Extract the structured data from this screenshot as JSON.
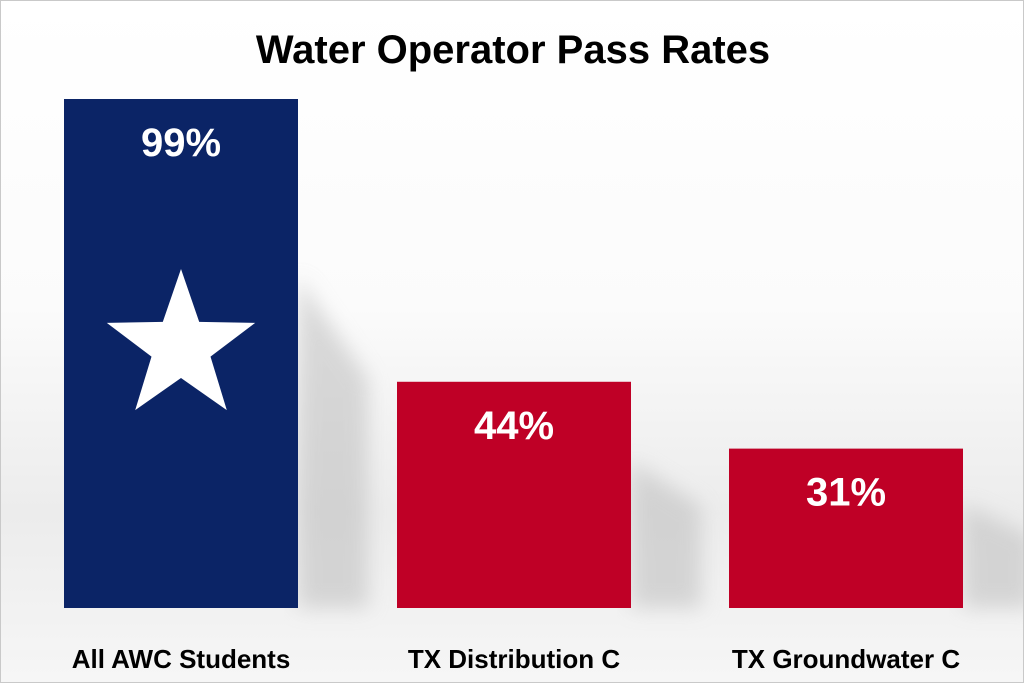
{
  "chart_data": {
    "type": "bar",
    "title": "Water Operator Pass Rates",
    "categories": [
      "All AWC Students",
      "TX Distribution C",
      "TX Groundwater C"
    ],
    "values": [
      99,
      44,
      31
    ],
    "value_labels": [
      "99%",
      "44%",
      "31%"
    ],
    "xlabel": "",
    "ylabel": "",
    "ylim": [
      0,
      110
    ],
    "grid": false,
    "legend": "none",
    "bar_colors": [
      "#0b2466",
      "#bf0026",
      "#bf0026"
    ],
    "star_on_first_bar": true,
    "star_color": "#ffffff"
  }
}
